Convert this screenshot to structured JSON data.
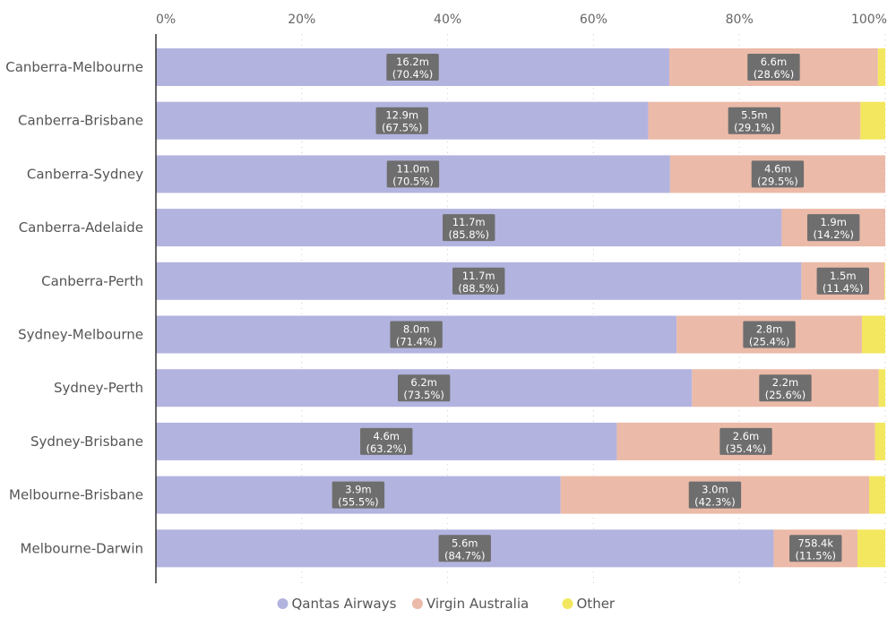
{
  "chart_data": {
    "type": "bar",
    "orientation": "horizontal",
    "stacked": "percent",
    "title": "",
    "xlabel": "",
    "ylabel": "",
    "xlim": [
      0,
      100
    ],
    "x_ticks": [
      "0%",
      "20%",
      "40%",
      "60%",
      "80%",
      "100%"
    ],
    "grid": true,
    "legend_position": "bottom",
    "categories": [
      "Canberra-Melbourne",
      "Canberra-Brisbane",
      "Canberra-Sydney",
      "Canberra-Adelaide",
      "Canberra-Perth",
      "Sydney-Melbourne",
      "Sydney-Perth",
      "Sydney-Brisbane",
      "Melbourne-Brisbane",
      "Melbourne-Darwin"
    ],
    "series": [
      {
        "name": "Qantas Airways",
        "color": "#b3b3df",
        "values": [
          70.4,
          67.5,
          70.5,
          85.8,
          88.5,
          71.4,
          73.5,
          63.2,
          55.5,
          84.7
        ],
        "labels": [
          "16.2m",
          "12.9m",
          "11.0m",
          "11.7m",
          "11.7m",
          "8.0m",
          "6.2m",
          "4.6m",
          "3.9m",
          "5.6m"
        ],
        "pct_labels": [
          "(70.4%)",
          "(67.5%)",
          "(70.5%)",
          "(85.8%)",
          "(88.5%)",
          "(71.4%)",
          "(73.5%)",
          "(63.2%)",
          "(55.5%)",
          "(84.7%)"
        ]
      },
      {
        "name": "Virgin Australia",
        "color": "#ebbaa8",
        "values": [
          28.6,
          29.1,
          29.5,
          14.2,
          11.4,
          25.4,
          25.6,
          35.4,
          42.3,
          11.5
        ],
        "labels": [
          "6.6m",
          "5.5m",
          "4.6m",
          "1.9m",
          "1.5m",
          "2.8m",
          "2.2m",
          "2.6m",
          "3.0m",
          "758.4k"
        ],
        "pct_labels": [
          "(28.6%)",
          "(29.1%)",
          "(29.5%)",
          "(14.2%)",
          "(11.4%)",
          "(25.4%)",
          "(25.6%)",
          "(35.4%)",
          "(42.3%)",
          "(11.5%)"
        ]
      },
      {
        "name": "Other",
        "color": "#f2e75e",
        "values": [
          1.0,
          3.4,
          0.0,
          0.0,
          0.1,
          3.2,
          0.9,
          1.4,
          2.2,
          3.8
        ],
        "labels": [],
        "pct_labels": []
      }
    ]
  }
}
